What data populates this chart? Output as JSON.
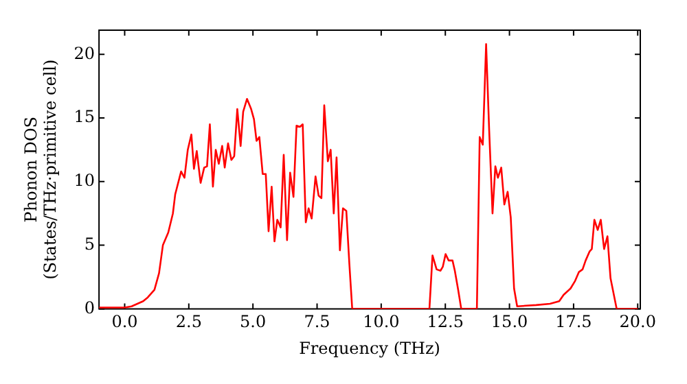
{
  "chart_data": {
    "type": "line",
    "xlabel": "Frequency (THz)",
    "ylabel": "Phonon DOS\n(States/THz·primitive cell)",
    "xlim": [
      -1,
      20.1
    ],
    "ylim": [
      0,
      21.9
    ],
    "xticks": [
      {
        "value": 0,
        "label": "0.0"
      },
      {
        "value": 2.5,
        "label": "2.5"
      },
      {
        "value": 5,
        "label": "5.0"
      },
      {
        "value": 7.5,
        "label": "7.5"
      },
      {
        "value": 10,
        "label": "10.0"
      },
      {
        "value": 12.5,
        "label": "12.5"
      },
      {
        "value": 15,
        "label": "15.0"
      },
      {
        "value": 17.5,
        "label": "17.5"
      },
      {
        "value": 20,
        "label": "20.0"
      }
    ],
    "yticks": [
      0,
      5,
      10,
      15,
      20
    ],
    "grid": false,
    "legend": false,
    "marker": "none",
    "line_style": "solid",
    "series": [
      {
        "color": "#ff0000",
        "x": [
          -1,
          0,
          0.27,
          0.72,
          0.9,
          1.16,
          1.34,
          1.49,
          1.7,
          1.88,
          1.97,
          2.2,
          2.33,
          2.46,
          2.6,
          2.7,
          2.81,
          2.96,
          3.1,
          3.21,
          3.32,
          3.44,
          3.55,
          3.67,
          3.8,
          3.9,
          4.03,
          4.16,
          4.27,
          4.39,
          4.52,
          4.62,
          4.77,
          4.93,
          5.04,
          5.14,
          5.25,
          5.38,
          5.5,
          5.61,
          5.73,
          5.84,
          5.95,
          6.08,
          6.2,
          6.33,
          6.45,
          6.58,
          6.7,
          6.83,
          6.94,
          7.06,
          7.17,
          7.29,
          7.44,
          7.56,
          7.67,
          7.78,
          7.92,
          8.03,
          8.15,
          8.26,
          8.39,
          8.51,
          8.64,
          8.76,
          8.87,
          11.88,
          12.0,
          12.16,
          12.31,
          12.4,
          12.51,
          12.63,
          12.78,
          12.87,
          13.0,
          13.12,
          13.73,
          13.84,
          13.96,
          14.09,
          14.21,
          14.34,
          14.45,
          14.55,
          14.68,
          14.8,
          14.93,
          15.05,
          15.18,
          15.3,
          16.04,
          16.58,
          16.94,
          17.11,
          17.38,
          17.56,
          17.71,
          17.85,
          17.97,
          18.12,
          18.21,
          18.31,
          18.44,
          18.56,
          18.69,
          18.82,
          18.94,
          19.18,
          20.0
        ],
        "values": [
          0.1,
          0.1,
          0.2,
          0.6,
          0.9,
          1.5,
          2.8,
          5,
          6,
          7.5,
          9,
          10.8,
          10.3,
          12.5,
          13.7,
          11,
          12.4,
          9.9,
          11.1,
          11.2,
          14.5,
          9.6,
          12.5,
          11.4,
          12.8,
          11.1,
          13,
          11.7,
          12,
          15.7,
          12.8,
          15.5,
          16.5,
          15.7,
          14.9,
          13.2,
          13.5,
          10.6,
          10.6,
          6.1,
          9.6,
          5.3,
          7,
          6.4,
          12.1,
          5.4,
          10.7,
          8.8,
          14.4,
          14.3,
          14.5,
          6.8,
          7.9,
          7.1,
          10.4,
          8.9,
          8.7,
          16,
          11.6,
          12.5,
          7.5,
          11.9,
          4.6,
          7.9,
          7.7,
          3.5,
          0,
          0,
          4.2,
          3.1,
          3,
          3.3,
          4.3,
          3.8,
          3.8,
          3,
          1.5,
          0,
          0,
          13.5,
          12.9,
          20.8,
          14,
          7.5,
          11.2,
          10.3,
          11.1,
          8.2,
          9.2,
          7.2,
          1.6,
          0.2,
          0.3,
          0.4,
          0.6,
          1.1,
          1.6,
          2.2,
          2.9,
          3.1,
          3.8,
          4.5,
          4.7,
          7,
          6.2,
          7,
          4.7,
          5.7,
          2.4,
          0,
          0
        ]
      }
    ]
  }
}
